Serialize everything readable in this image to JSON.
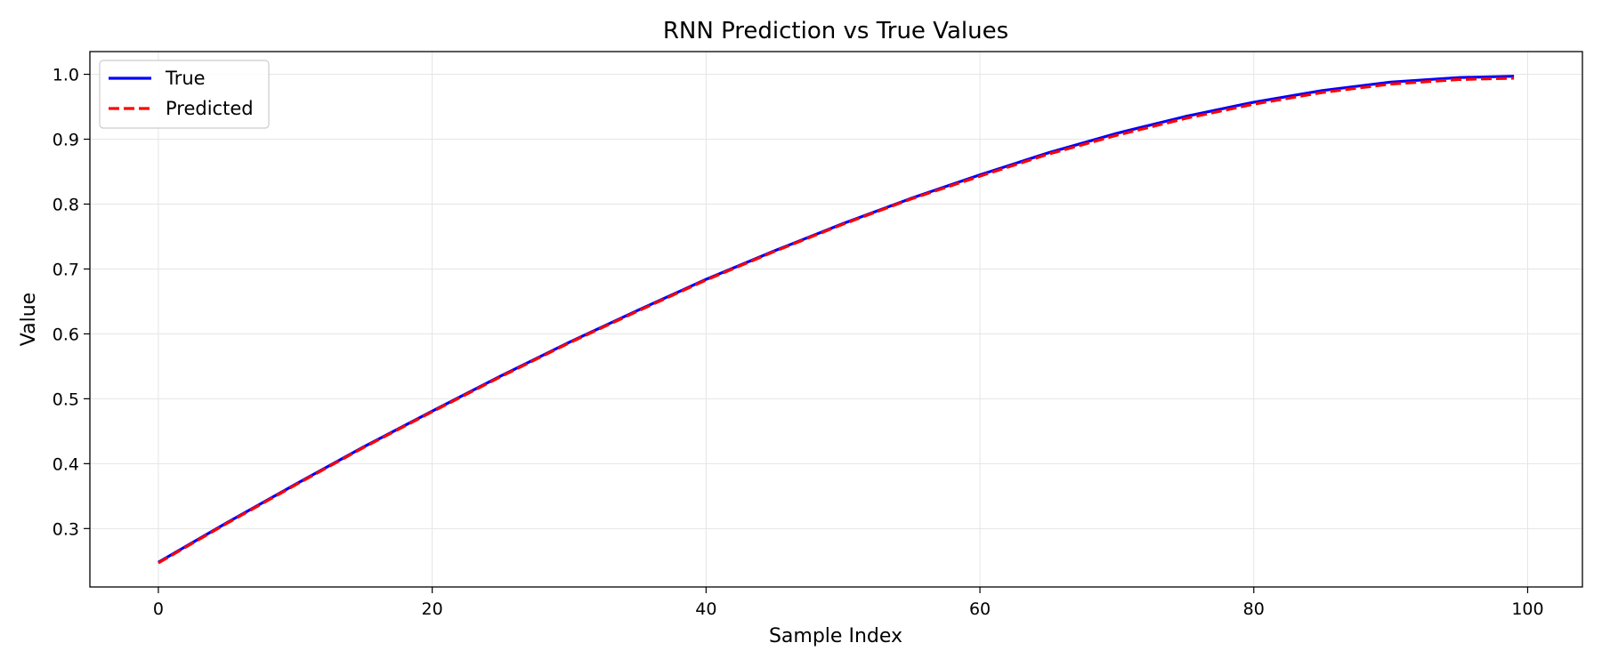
{
  "chart_data": {
    "type": "line",
    "title": "RNN Prediction vs True Values",
    "xlabel": "Sample Index",
    "ylabel": "Value",
    "xlim": [
      -5,
      104
    ],
    "ylim": [
      0.21,
      1.035
    ],
    "xticks": [
      0,
      20,
      40,
      60,
      80,
      100
    ],
    "yticks": [
      0.3,
      0.4,
      0.5,
      0.6,
      0.7,
      0.8,
      0.9,
      1.0
    ],
    "xtick_labels": [
      "0",
      "20",
      "40",
      "60",
      "80",
      "100"
    ],
    "ytick_labels": [
      "0.3",
      "0.4",
      "0.5",
      "0.6",
      "0.7",
      "0.8",
      "0.9",
      "1.0"
    ],
    "grid": true,
    "legend_position": "top-left",
    "x": [
      0,
      5,
      10,
      15,
      20,
      25,
      30,
      35,
      40,
      45,
      50,
      55,
      60,
      65,
      70,
      75,
      80,
      85,
      90,
      95,
      99
    ],
    "series": [
      {
        "name": "True",
        "color": "#0000ff",
        "style": "solid",
        "values": [
          0.248,
          0.309,
          0.368,
          0.426,
          0.481,
          0.535,
          0.587,
          0.636,
          0.684,
          0.728,
          0.77,
          0.809,
          0.845,
          0.879,
          0.909,
          0.935,
          0.957,
          0.975,
          0.988,
          0.995,
          0.997
        ]
      },
      {
        "name": "Predicted",
        "color": "#ff0000",
        "style": "dashed",
        "values": [
          0.247,
          0.308,
          0.367,
          0.425,
          0.48,
          0.534,
          0.586,
          0.635,
          0.683,
          0.727,
          0.769,
          0.808,
          0.843,
          0.877,
          0.906,
          0.932,
          0.954,
          0.972,
          0.985,
          0.992,
          0.994
        ]
      }
    ]
  }
}
